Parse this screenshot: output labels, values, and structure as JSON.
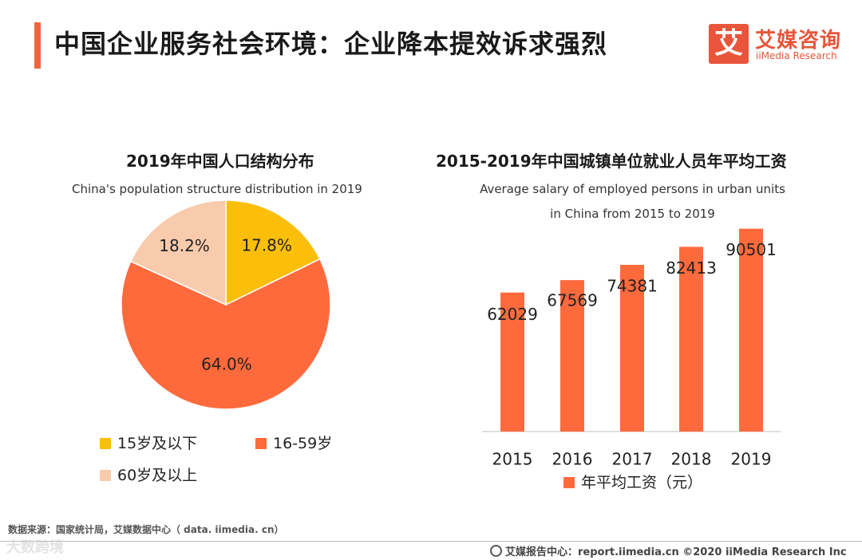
{
  "header": {
    "title": "中国企业服务社会环境：企业降本提效诉求强烈",
    "logo_mark": "艾",
    "logo_cn": "艾媒咨询",
    "logo_en": "iiMedia Research"
  },
  "colors": {
    "accent": "#f0643c",
    "yellow": "#fbbf0a",
    "orange": "#ff6a3d",
    "peach": "#f8cbad",
    "bar": "#ff6a3d"
  },
  "chart_data": [
    {
      "type": "pie",
      "title": "2019年中国人口结构分布",
      "subtitle": "China's population structure distribution in 2019",
      "slices": [
        {
          "label": "15岁及以下",
          "value": 17.8,
          "display": "17.8%",
          "color": "#fbbf0a"
        },
        {
          "label": "16-59岁",
          "value": 64.0,
          "display": "64.0%",
          "color": "#ff6a3d"
        },
        {
          "label": "60岁及以上",
          "value": 18.2,
          "display": "18.2%",
          "color": "#f8cbad"
        }
      ]
    },
    {
      "type": "bar",
      "title": "2015-2019年中国城镇单位就业人员年平均工资",
      "subtitle_line1": "Average salary of employed persons in urban units",
      "subtitle_line2": "in China from 2015 to 2019",
      "categories": [
        "2015",
        "2016",
        "2017",
        "2018",
        "2019"
      ],
      "values": [
        62029,
        67569,
        74381,
        82413,
        90501
      ],
      "series_name": "年平均工资（元）",
      "ylim": [
        0,
        100000
      ]
    }
  ],
  "footer": {
    "source": "数据来源：国家统计局，艾媒数据中心（ data. iimedia. cn）",
    "report": "艾媒报告中心：report.iimedia.cn  ©2020  iiMedia Research  Inc",
    "watermark": "大数跨境"
  }
}
